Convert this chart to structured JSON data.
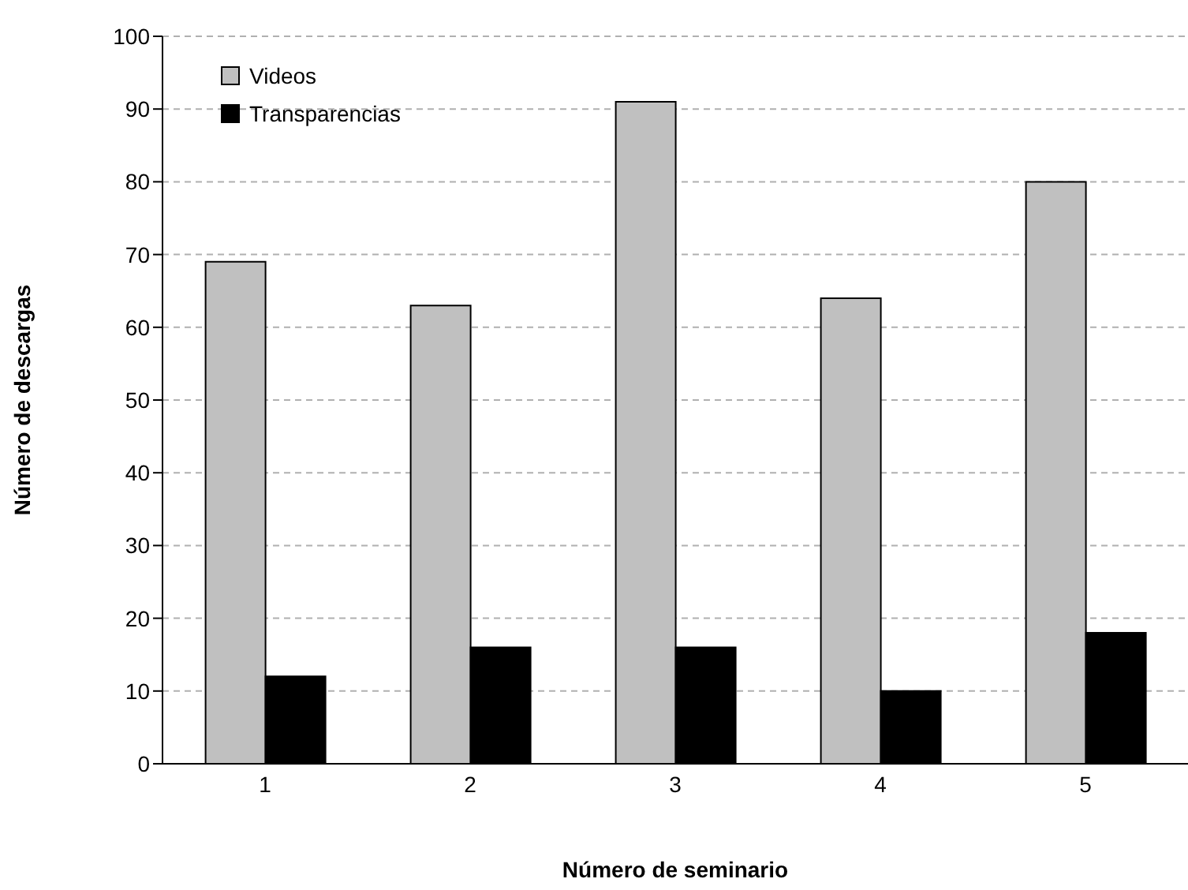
{
  "chart_data": {
    "type": "bar",
    "xlabel": "Número de seminario",
    "ylabel": "Número de descargas",
    "categories": [
      "1",
      "2",
      "3",
      "4",
      "5"
    ],
    "series": [
      {
        "name": "Videos",
        "color": "#c0c0c0",
        "values": [
          69,
          63,
          91,
          64,
          80
        ]
      },
      {
        "name": "Transparencias",
        "color": "#000000",
        "values": [
          12,
          16,
          16,
          10,
          18
        ]
      }
    ],
    "ylim": [
      0,
      100
    ],
    "yticks": [
      0,
      10,
      20,
      30,
      40,
      50,
      60,
      70,
      80,
      90,
      100
    ],
    "grid": "y",
    "legend": "top left"
  }
}
